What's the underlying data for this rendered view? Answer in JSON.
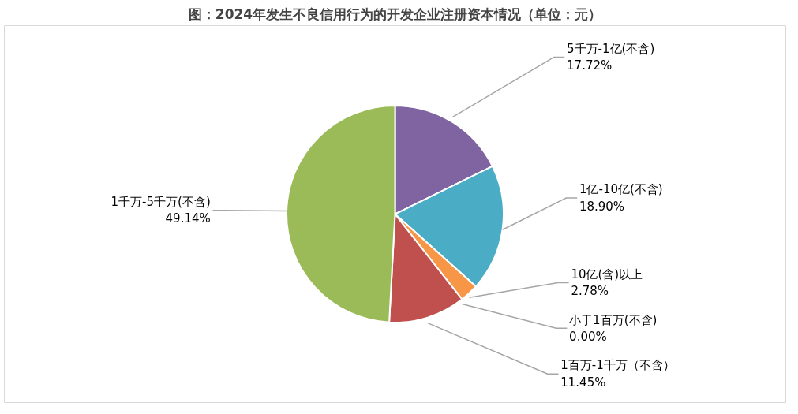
{
  "chart_data": {
    "type": "pie",
    "title": "图：2024年发生不良信用行为的开发企业注册资本情况（单位：元）",
    "categories": [
      "5千万-1亿(不含)",
      "1亿-10亿(不含)",
      "10亿(含)以上",
      "小于1百万(不含)",
      "1百万-1千万（不含）",
      "1千万-5千万(不含)"
    ],
    "values": [
      17.72,
      18.9,
      2.78,
      0.0,
      11.45,
      49.14
    ],
    "colors": [
      "#8064a2",
      "#4bacc6",
      "#f79646",
      "#4f81bd",
      "#c0504d",
      "#9bbb59"
    ],
    "value_labels": [
      "17.72%",
      "18.90%",
      "2.78%",
      "0.00%",
      "11.45%",
      "49.14%"
    ]
  }
}
